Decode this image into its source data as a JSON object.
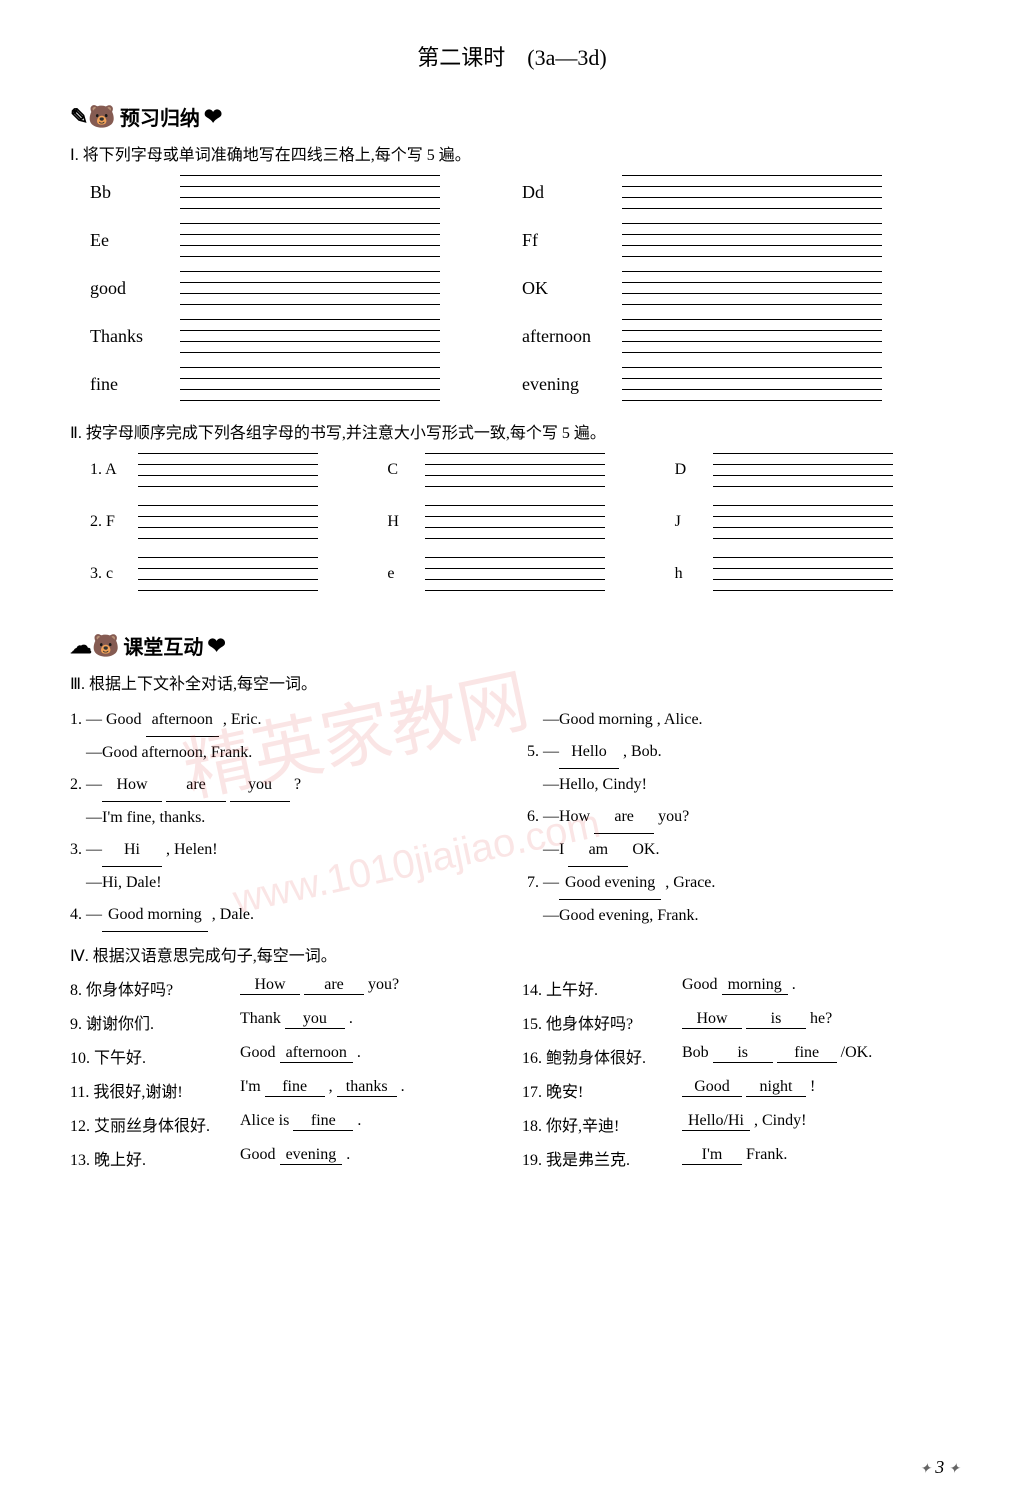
{
  "title": "第二课时　(3a—3d)",
  "banner1": "预习归纳",
  "banner2": "课堂互动",
  "sec1": {
    "instr": "Ⅰ. 将下列字母或单词准确地写在四线三格上,每个写 5 遍。",
    "items": [
      "Bb",
      "Dd",
      "Ee",
      "Ff",
      "good",
      "OK",
      "Thanks",
      "afternoon",
      "fine",
      "evening"
    ]
  },
  "sec2": {
    "instr": "Ⅱ. 按字母顺序完成下列各组字母的书写,并注意大小写形式一致,每个写 5 遍。",
    "rows": [
      {
        "n": "1.",
        "a": "A",
        "b": "C",
        "c": "D"
      },
      {
        "n": "2.",
        "a": "F",
        "b": "H",
        "c": "J"
      },
      {
        "n": "3.",
        "a": "c",
        "b": "e",
        "c": "h"
      }
    ]
  },
  "sec3": {
    "instr": "Ⅲ. 根据上下文补全对话,每空一词。",
    "left": [
      {
        "type": "q",
        "pre": "1. —",
        "parts": [
          {
            "t": " Good "
          },
          {
            "b": "afternoon"
          },
          {
            "t": " , Eric."
          }
        ]
      },
      {
        "type": "a",
        "text": "—Good afternoon, Frank."
      },
      {
        "type": "q",
        "pre": "2. —",
        "parts": [
          {
            "b": "How"
          },
          {
            "t": " "
          },
          {
            "b": "are"
          },
          {
            "t": " "
          },
          {
            "b": "you"
          },
          {
            "t": " ?"
          }
        ]
      },
      {
        "type": "a",
        "text": "—I'm fine, thanks."
      },
      {
        "type": "q",
        "pre": "3. —",
        "parts": [
          {
            "b": "Hi"
          },
          {
            "t": " , Helen!"
          }
        ]
      },
      {
        "type": "a",
        "text": "—Hi, Dale!"
      },
      {
        "type": "q",
        "pre": "4. —",
        "parts": [
          {
            "b": "Good morning",
            "w": true
          },
          {
            "t": " , Dale."
          }
        ]
      }
    ],
    "right": [
      {
        "type": "a",
        "text": "—Good morning , Alice."
      },
      {
        "type": "q",
        "pre": "5. —",
        "parts": [
          {
            "b": "Hello"
          },
          {
            "t": " , Bob."
          }
        ]
      },
      {
        "type": "a",
        "text": "—Hello, Cindy!"
      },
      {
        "type": "q",
        "pre": "6. —How ",
        "parts": [
          {
            "b": "are"
          },
          {
            "t": " you?"
          }
        ]
      },
      {
        "type": "q",
        "pre": "　—I ",
        "parts": [
          {
            "b": "am"
          },
          {
            "t": " OK."
          }
        ]
      },
      {
        "type": "q",
        "pre": "7. —",
        "parts": [
          {
            "b": "Good evening",
            "w": true
          },
          {
            "t": " , Grace."
          }
        ]
      },
      {
        "type": "a",
        "text": "—Good evening, Frank."
      }
    ]
  },
  "sec4": {
    "instr": "Ⅳ. 根据汉语意思完成句子,每空一词。",
    "rows": [
      {
        "ln": "8.",
        "lch": "你身体好吗?",
        "lans": [
          {
            "b": "How"
          },
          {
            "t": " "
          },
          {
            "b": "are"
          },
          {
            "t": " you?"
          }
        ],
        "rn": "14.",
        "rch": "上午好.",
        "rans": [
          {
            "t": "Good "
          },
          {
            "b": "morning"
          },
          {
            "t": " ."
          }
        ]
      },
      {
        "ln": "9.",
        "lch": "谢谢你们.",
        "lans": [
          {
            "t": "Thank "
          },
          {
            "b": "you"
          },
          {
            "t": " ."
          }
        ],
        "rn": "15.",
        "rch": "他身体好吗?",
        "rans": [
          {
            "b": "How"
          },
          {
            "t": " "
          },
          {
            "b": "is"
          },
          {
            "t": " he?"
          }
        ]
      },
      {
        "ln": "10.",
        "lch": "下午好.",
        "lans": [
          {
            "t": "Good "
          },
          {
            "b": "afternoon"
          },
          {
            "t": " ."
          }
        ],
        "rn": "16.",
        "rch": "鲍勃身体很好.",
        "rans": [
          {
            "t": "Bob "
          },
          {
            "b": "is"
          },
          {
            "t": " "
          },
          {
            "b": "fine"
          },
          {
            "t": " /OK."
          }
        ]
      },
      {
        "ln": "11.",
        "lch": "我很好,谢谢!",
        "lans": [
          {
            "t": "I'm "
          },
          {
            "b": "fine"
          },
          {
            "t": " , "
          },
          {
            "b": "thanks"
          },
          {
            "t": " ."
          }
        ],
        "rn": "17.",
        "rch": "晚安!",
        "rans": [
          {
            "b": "Good"
          },
          {
            "t": " "
          },
          {
            "b": "night"
          },
          {
            "t": " !"
          }
        ]
      },
      {
        "ln": "12.",
        "lch": "艾丽丝身体很好.",
        "lans": [
          {
            "t": "Alice is "
          },
          {
            "b": "fine"
          },
          {
            "t": " ."
          }
        ],
        "rn": "18.",
        "rch": "你好,辛迪!",
        "rans": [
          {
            "b": "Hello/Hi"
          },
          {
            "t": " , Cindy!"
          }
        ]
      },
      {
        "ln": "13.",
        "lch": "晚上好.",
        "lans": [
          {
            "t": "Good "
          },
          {
            "b": "evening"
          },
          {
            "t": " ."
          }
        ],
        "rn": "19.",
        "rch": "我是弗兰克.",
        "rans": [
          {
            "b": "I'm"
          },
          {
            "t": " Frank."
          }
        ]
      }
    ]
  },
  "watermark1": "精英家教网",
  "watermark2": "www.1010jiajiao.com",
  "pageNum": "3"
}
